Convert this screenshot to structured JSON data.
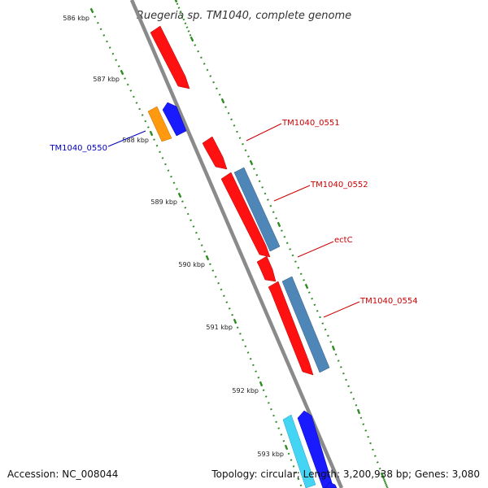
{
  "title": "Ruegeria sp. TM1040, complete genome",
  "footer": {
    "accession": "Accession: NC_008044",
    "summary": "Topology: circular; Length: 3,200,938 bp; Genes: 3,080"
  },
  "colors": {
    "backbone": "#8a8a8a",
    "tick": "#2e8b22",
    "kbp_label": "#222222",
    "gene_red": "#ff1111",
    "gene_steelblue": "#4f86b8",
    "gene_blue": "#1a1aff",
    "gene_orange": "#ff9a10",
    "gene_cyan": "#44d4f4",
    "label_red": "#cc0000",
    "label_blue": "#0000bb"
  },
  "kbp_labels": [
    {
      "text": "586 kbp"
    },
    {
      "text": "587 kbp"
    },
    {
      "text": "588 kbp"
    },
    {
      "text": "589 kbp"
    },
    {
      "text": "590 kbp"
    },
    {
      "text": "591 kbp"
    },
    {
      "text": "592 kbp"
    },
    {
      "text": "593 kbp"
    }
  ],
  "gene_labels": [
    {
      "text": "TM1040_0551",
      "color": "#cc0000"
    },
    {
      "text": "TM1040_0552",
      "color": "#cc0000"
    },
    {
      "text": "ectC",
      "color": "#cc0000"
    },
    {
      "text": "TM1040_0554",
      "color": "#cc0000"
    },
    {
      "text": "TM1040_0550",
      "color": "#0000bb"
    }
  ]
}
